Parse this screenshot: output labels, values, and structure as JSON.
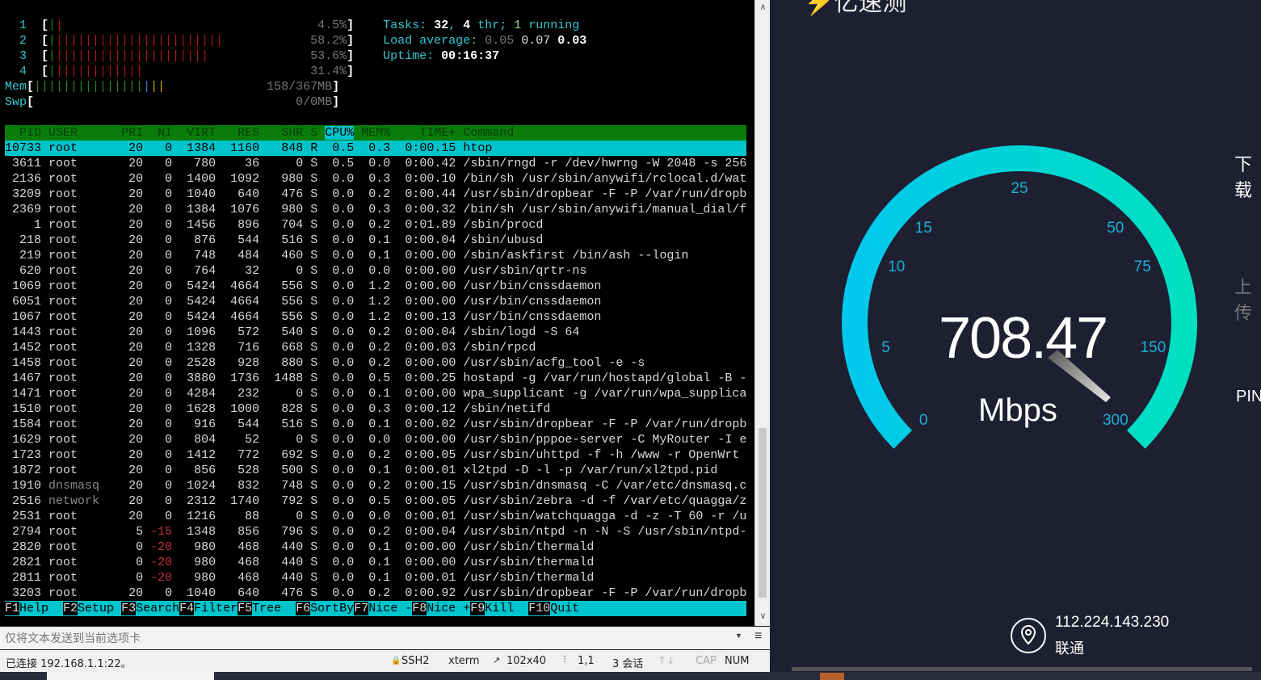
{
  "terminal": {
    "cpu_meters": [
      {
        "label": "1",
        "percent": 4.5,
        "text": "4.5%"
      },
      {
        "label": "2",
        "percent": 58.2,
        "text": "58.2%"
      },
      {
        "label": "3",
        "percent": 53.6,
        "text": "53.6%"
      },
      {
        "label": "4",
        "percent": 31.4,
        "text": "31.4%"
      }
    ],
    "mem_meter": {
      "label": "Mem",
      "text": "158/367MB",
      "used_percent": 43
    },
    "swp_meter": {
      "label": "Swp",
      "text": "0/0MB",
      "used_percent": 0
    },
    "tasks": {
      "label": "Tasks: ",
      "count": "32",
      "thr": "4",
      "thr_label": " thr; ",
      "running": "1",
      "running_label": " running"
    },
    "load": {
      "label": "Load average: ",
      "v1": "0.05",
      "v2": "0.07",
      "v3": "0.03"
    },
    "uptime": {
      "label": "Uptime: ",
      "value": "00:16:37"
    },
    "columns": [
      "PID",
      "USER",
      "PRI",
      "NI",
      "VIRT",
      "RES",
      "SHR",
      "S",
      "CPU%",
      "MEM%",
      "TIME+",
      "Command"
    ],
    "processes": [
      [
        "10733",
        "root",
        "20",
        "0",
        "1384",
        "1160",
        "848",
        "R",
        "0.5",
        "0.3",
        "0:00.15",
        "htop"
      ],
      [
        "3611",
        "root",
        "20",
        "0",
        "780",
        "36",
        "0",
        "S",
        "0.5",
        "0.0",
        "0:00.42",
        "/sbin/rngd -r /dev/hwrng -W 2048 -s 256"
      ],
      [
        "2136",
        "root",
        "20",
        "0",
        "1400",
        "1092",
        "980",
        "S",
        "0.0",
        "0.3",
        "0:00.10",
        "/bin/sh /usr/sbin/anywifi/rclocal.d/wat"
      ],
      [
        "3209",
        "root",
        "20",
        "0",
        "1040",
        "640",
        "476",
        "S",
        "0.0",
        "0.2",
        "0:00.44",
        "/usr/sbin/dropbear -F -P /var/run/dropb"
      ],
      [
        "2369",
        "root",
        "20",
        "0",
        "1384",
        "1076",
        "980",
        "S",
        "0.0",
        "0.3",
        "0:00.32",
        "/bin/sh /usr/sbin/anywifi/manual_dial/f"
      ],
      [
        "1",
        "root",
        "20",
        "0",
        "1456",
        "896",
        "704",
        "S",
        "0.0",
        "0.2",
        "0:01.89",
        "/sbin/procd"
      ],
      [
        "218",
        "root",
        "20",
        "0",
        "876",
        "544",
        "516",
        "S",
        "0.0",
        "0.1",
        "0:00.04",
        "/sbin/ubusd"
      ],
      [
        "219",
        "root",
        "20",
        "0",
        "748",
        "484",
        "460",
        "S",
        "0.0",
        "0.1",
        "0:00.00",
        "/sbin/askfirst /bin/ash --login"
      ],
      [
        "620",
        "root",
        "20",
        "0",
        "764",
        "32",
        "0",
        "S",
        "0.0",
        "0.0",
        "0:00.00",
        "/usr/sbin/qrtr-ns"
      ],
      [
        "1069",
        "root",
        "20",
        "0",
        "5424",
        "4664",
        "556",
        "S",
        "0.0",
        "1.2",
        "0:00.00",
        "/usr/bin/cnssdaemon"
      ],
      [
        "6051",
        "root",
        "20",
        "0",
        "5424",
        "4664",
        "556",
        "S",
        "0.0",
        "1.2",
        "0:00.00",
        "/usr/bin/cnssdaemon"
      ],
      [
        "1067",
        "root",
        "20",
        "0",
        "5424",
        "4664",
        "556",
        "S",
        "0.0",
        "1.2",
        "0:00.13",
        "/usr/bin/cnssdaemon"
      ],
      [
        "1443",
        "root",
        "20",
        "0",
        "1096",
        "572",
        "540",
        "S",
        "0.0",
        "0.2",
        "0:00.04",
        "/sbin/logd -S 64"
      ],
      [
        "1452",
        "root",
        "20",
        "0",
        "1328",
        "716",
        "668",
        "S",
        "0.0",
        "0.2",
        "0:00.03",
        "/sbin/rpcd"
      ],
      [
        "1458",
        "root",
        "20",
        "0",
        "2528",
        "928",
        "880",
        "S",
        "0.0",
        "0.2",
        "0:00.00",
        "/usr/sbin/acfg_tool -e -s"
      ],
      [
        "1467",
        "root",
        "20",
        "0",
        "3880",
        "1736",
        "1488",
        "S",
        "0.0",
        "0.5",
        "0:00.25",
        "hostapd -g /var/run/hostapd/global -B -"
      ],
      [
        "1471",
        "root",
        "20",
        "0",
        "4284",
        "232",
        "0",
        "S",
        "0.0",
        "0.1",
        "0:00.00",
        "wpa_supplicant -g /var/run/wpa_supplica"
      ],
      [
        "1510",
        "root",
        "20",
        "0",
        "1628",
        "1000",
        "828",
        "S",
        "0.0",
        "0.3",
        "0:00.12",
        "/sbin/netifd"
      ],
      [
        "1584",
        "root",
        "20",
        "0",
        "916",
        "544",
        "516",
        "S",
        "0.0",
        "0.1",
        "0:00.02",
        "/usr/sbin/dropbear -F -P /var/run/dropb"
      ],
      [
        "1629",
        "root",
        "20",
        "0",
        "804",
        "52",
        "0",
        "S",
        "0.0",
        "0.0",
        "0:00.00",
        "/usr/sbin/pppoe-server -C MyRouter -I e"
      ],
      [
        "1723",
        "root",
        "20",
        "0",
        "1412",
        "772",
        "692",
        "S",
        "0.0",
        "0.2",
        "0:00.05",
        "/usr/sbin/uhttpd -f -h /www -r OpenWrt"
      ],
      [
        "1872",
        "root",
        "20",
        "0",
        "856",
        "528",
        "500",
        "S",
        "0.0",
        "0.1",
        "0:00.01",
        "xl2tpd -D -l -p /var/run/xl2tpd.pid"
      ],
      [
        "1910",
        "dnsmasq",
        "20",
        "0",
        "1024",
        "832",
        "748",
        "S",
        "0.0",
        "0.2",
        "0:00.15",
        "/usr/sbin/dnsmasq -C /var/etc/dnsmasq.c"
      ],
      [
        "2516",
        "network",
        "20",
        "0",
        "2312",
        "1740",
        "792",
        "S",
        "0.0",
        "0.5",
        "0:00.05",
        "/usr/sbin/zebra -d -f /var/etc/quagga/z"
      ],
      [
        "2531",
        "root",
        "20",
        "0",
        "1216",
        "88",
        "0",
        "S",
        "0.0",
        "0.0",
        "0:00.01",
        "/usr/sbin/watchquagga -d -z -T 60 -r /u"
      ],
      [
        "2794",
        "root",
        "5",
        "-15",
        "1348",
        "856",
        "796",
        "S",
        "0.0",
        "0.2",
        "0:00.04",
        "/usr/sbin/ntpd -n -N -S /usr/sbin/ntpd-"
      ],
      [
        "2820",
        "root",
        "0",
        "-20",
        "980",
        "468",
        "440",
        "S",
        "0.0",
        "0.1",
        "0:00.00",
        "/usr/sbin/thermald"
      ],
      [
        "2821",
        "root",
        "0",
        "-20",
        "980",
        "468",
        "440",
        "S",
        "0.0",
        "0.1",
        "0:00.00",
        "/usr/sbin/thermald"
      ],
      [
        "2811",
        "root",
        "0",
        "-20",
        "980",
        "468",
        "440",
        "S",
        "0.0",
        "0.1",
        "0:00.01",
        "/usr/sbin/thermald"
      ],
      [
        "3203",
        "root",
        "20",
        "0",
        "1040",
        "640",
        "476",
        "S",
        "0.0",
        "0.2",
        "0:00.92",
        "/usr/sbin/dropbear -F -P /var/run/dropb"
      ]
    ],
    "selected_pid": "10733",
    "function_keys": [
      {
        "key": "F1",
        "label": "Help  "
      },
      {
        "key": "F2",
        "label": "Setup "
      },
      {
        "key": "F3",
        "label": "Search"
      },
      {
        "key": "F4",
        "label": "Filter"
      },
      {
        "key": "F5",
        "label": "Tree  "
      },
      {
        "key": "F6",
        "label": "SortBy"
      },
      {
        "key": "F7",
        "label": "Nice -"
      },
      {
        "key": "F8",
        "label": "Nice +"
      },
      {
        "key": "F9",
        "label": "Kill  "
      },
      {
        "key": "F10",
        "label": "Quit"
      }
    ]
  },
  "input_bar": {
    "placeholder": "仅将文本发送到当前选项卡"
  },
  "status_bar": {
    "connection": "已连接 192.168.1.1:22。",
    "protocol": "SSH2",
    "terminal_type": "xterm",
    "size": "102x40",
    "cursor": "1,1",
    "sessions": "3 会话",
    "cap": "CAP",
    "num": "NUM"
  },
  "speedtest": {
    "logo_text": "亿速测",
    "speed_value": "708.47",
    "speed_unit": "Mbps",
    "gauge_labels": [
      "0",
      "5",
      "10",
      "15",
      "25",
      "50",
      "75",
      "150",
      "300"
    ],
    "gauge_colors": {
      "start": "#00c8ec",
      "end": "#00e0c0"
    },
    "side_labels": {
      "download": "下载",
      "upload": "上传",
      "ping": "PING"
    },
    "ip": "112.224.143.230",
    "isp": "联通"
  }
}
